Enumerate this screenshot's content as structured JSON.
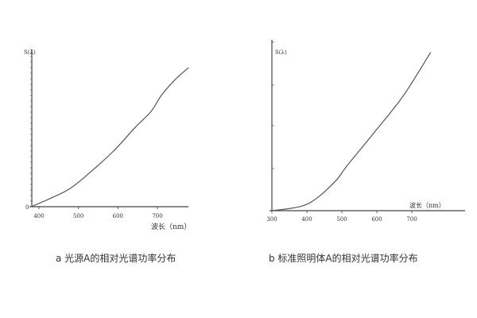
{
  "chart_data": [
    {
      "type": "line",
      "caption": "a 光源A的相对光谱功率分布",
      "ylabel": "S(λ)",
      "xlabel": "波长（nm）",
      "xticks": [
        "400",
        "500",
        "600",
        "700"
      ],
      "ytick_zero": "0",
      "xlim": [
        378,
        780
      ],
      "ylim": [
        0,
        100
      ],
      "grid": false,
      "x": [
        380,
        422,
        476,
        522,
        589,
        643,
        684,
        710,
        745,
        779
      ],
      "y": [
        0,
        4.6,
        11.3,
        20.5,
        35.9,
        51,
        61.5,
        71.8,
        82,
        89.7
      ]
    },
    {
      "type": "line",
      "caption": "b 标准照明体A的相对光谱功率分布",
      "ylabel": "S(λ)",
      "xlabel": "波长（nm）",
      "xticks": [
        "300",
        "400",
        "500",
        "600",
        "700"
      ],
      "xlim": [
        300,
        800
      ],
      "ylim": [
        0,
        100
      ],
      "grid": false,
      "x": [
        300,
        400,
        477,
        516,
        591,
        675,
        754
      ],
      "y": [
        0,
        3.8,
        16.5,
        27,
        46,
        68,
        94
      ]
    }
  ]
}
